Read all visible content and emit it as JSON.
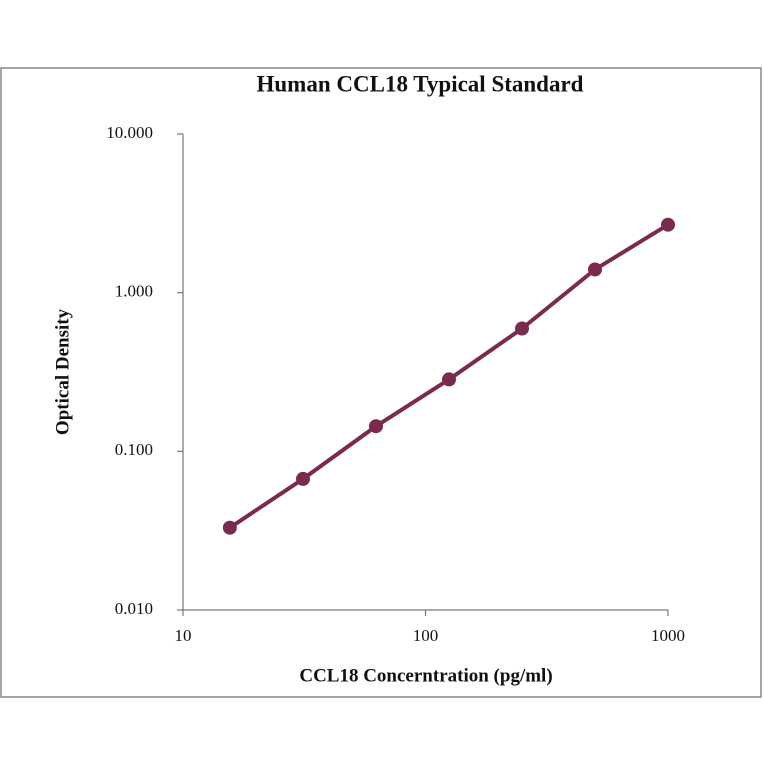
{
  "chart_data": {
    "type": "scatter",
    "title": "Human CCL18 Typical Standard",
    "x_label": "CCL18 Concerntration (pg/ml)",
    "y_label": "Optical Density",
    "x": [
      15.6,
      31.25,
      62.5,
      125,
      250,
      500,
      1000
    ],
    "series": [
      {
        "color": "#7b2a4f",
        "values": [
          0.033,
          0.067,
          0.144,
          0.284,
          0.594,
          1.4,
          2.68
        ]
      }
    ],
    "x_log": true,
    "y_log": true,
    "xlim": [
      10,
      1000
    ],
    "xticks": [
      10,
      100,
      1000
    ],
    "ylim": [
      0.01,
      10
    ],
    "yticks": [
      {
        "value": 0.01,
        "label": "0.010"
      },
      {
        "value": 0.1,
        "label": "0.100"
      },
      {
        "value": 1,
        "label": "1.000"
      },
      {
        "value": 10,
        "label": "10.000"
      }
    ],
    "grid": false
  }
}
